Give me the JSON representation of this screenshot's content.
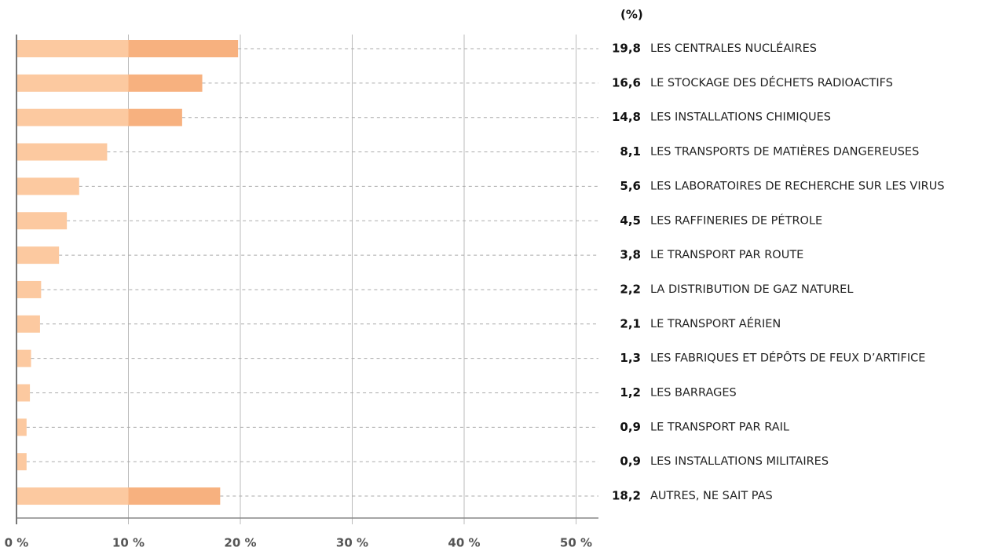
{
  "chart_data": {
    "type": "barh",
    "unit_label": "(%)",
    "categories": [
      "LES CENTRALES NUCLÉAIRES",
      "LE STOCKAGE DES DÉCHETS RADIOACTIFS",
      "LES INSTALLATIONS CHIMIQUES",
      "LES TRANSPORTS DE MATIÈRES DANGEREUSES",
      "LES LABORATOIRES DE RECHERCHE SUR LES VIRUS",
      "LES RAFFINERIES DE PÉTROLE",
      "LE TRANSPORT PAR ROUTE",
      "LA DISTRIBUTION DE GAZ NATUREL",
      "LE TRANSPORT AÉRIEN",
      "LES FABRIQUES ET DÉPÔTS DE FEUX D’ARTIFICE",
      "LES BARRAGES",
      "LE TRANSPORT PAR RAIL",
      "LES INSTALLATIONS MILITAIRES",
      "AUTRES, NE SAIT PAS"
    ],
    "values": [
      19.8,
      16.6,
      14.8,
      8.1,
      5.6,
      4.5,
      3.8,
      2.2,
      2.1,
      1.3,
      1.2,
      0.9,
      0.9,
      18.2
    ],
    "value_labels": [
      "19,8",
      "16,6",
      "14,8",
      "8,1",
      "5,6",
      "4,5",
      "3,8",
      "2,2",
      "2,1",
      "1,3",
      "1,2",
      "0,9",
      "0,9",
      "18,2"
    ],
    "colors": [
      "#fcc9a0",
      "#f7b17f"
    ],
    "xlim": [
      0,
      52
    ],
    "xticks": [
      {
        "value": 0,
        "label": "0 %"
      },
      {
        "value": 10,
        "label": "10 %"
      },
      {
        "value": 20,
        "label": "20 %"
      },
      {
        "value": 30,
        "label": "30 %"
      },
      {
        "value": 40,
        "label": "40 %"
      },
      {
        "value": 50,
        "label": "50 %"
      }
    ],
    "grid": true
  }
}
